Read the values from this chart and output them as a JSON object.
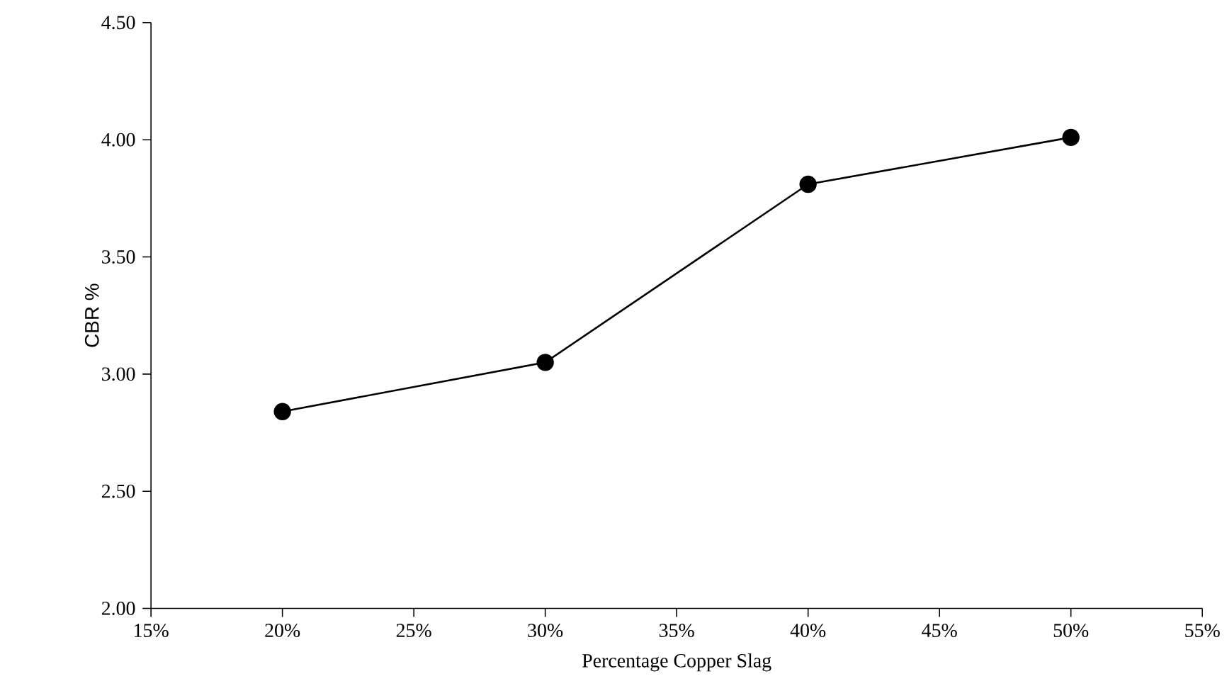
{
  "chart_data": {
    "type": "line",
    "xlabel": "Percentage Copper Slag",
    "ylabel": "CBR %",
    "x": [
      20,
      30,
      40,
      50
    ],
    "series": [
      {
        "color": "#000000",
        "values": [
          2.84,
          3.05,
          3.81,
          4.01
        ]
      }
    ],
    "xlim": [
      15,
      55
    ],
    "ylim": [
      2.0,
      4.5
    ],
    "xticks": [
      {
        "value": 15,
        "label": "15%"
      },
      {
        "value": 20,
        "label": "20%"
      },
      {
        "value": 25,
        "label": "25%"
      },
      {
        "value": 30,
        "label": "30%"
      },
      {
        "value": 35,
        "label": "35%"
      },
      {
        "value": 40,
        "label": "40%"
      },
      {
        "value": 45,
        "label": "45%"
      },
      {
        "value": 50,
        "label": "50%"
      },
      {
        "value": 55,
        "label": "55%"
      }
    ],
    "yticks": [
      {
        "value": 2.0,
        "label": "2.00"
      },
      {
        "value": 2.5,
        "label": "2.50"
      },
      {
        "value": 3.0,
        "label": "3.00"
      },
      {
        "value": 3.5,
        "label": "3.50"
      },
      {
        "value": 4.0,
        "label": "4.00"
      },
      {
        "value": 4.5,
        "label": "4.50"
      }
    ],
    "marker": "circle",
    "line_style": "solid",
    "grid": false
  }
}
